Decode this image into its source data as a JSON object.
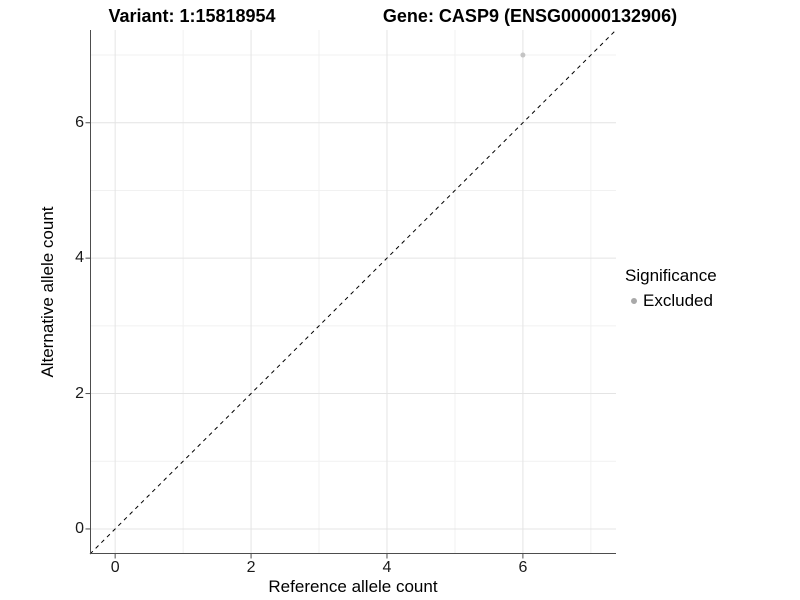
{
  "header": {
    "variant_title": "Variant: 1:15818954",
    "gene_title": "Gene: CASP9 (ENSG00000132906)"
  },
  "axes": {
    "x_title": "Reference allele count",
    "y_title": "Alternative allele count"
  },
  "legend": {
    "title": "Significance",
    "position": "right",
    "items": [
      {
        "label": "Excluded",
        "color": "#a9a9a9"
      }
    ]
  },
  "colors": {
    "background": "#ffffff",
    "point": "#c4c4c4",
    "grid_major": "#e4e4e4",
    "grid_minor": "#f1f1f1",
    "axis_line": "#4d4d4d",
    "dashed_line": "#000000",
    "text": "#000000"
  },
  "chart_data": {
    "type": "scatter",
    "title_left": "Variant: 1:15818954",
    "title_right": "Gene: CASP9 (ENSG00000132906)",
    "xlabel": "Reference allele count",
    "ylabel": "Alternative allele count",
    "xlim": [
      -0.37,
      7.37
    ],
    "ylim": [
      -0.37,
      7.37
    ],
    "x_ticks": [
      0,
      2,
      4,
      6
    ],
    "y_ticks": [
      0,
      2,
      4,
      6
    ],
    "x_minor_ticks": [
      1,
      3,
      5,
      7
    ],
    "y_minor_ticks": [
      1,
      3,
      5,
      7
    ],
    "grid": true,
    "legend_position": "right",
    "identity_line": {
      "shown": true,
      "style": "dashed",
      "slope": 1,
      "intercept": 0
    },
    "series": [
      {
        "name": "Excluded",
        "color": "#c4c4c4",
        "points": [
          [
            6,
            7
          ]
        ]
      }
    ]
  }
}
